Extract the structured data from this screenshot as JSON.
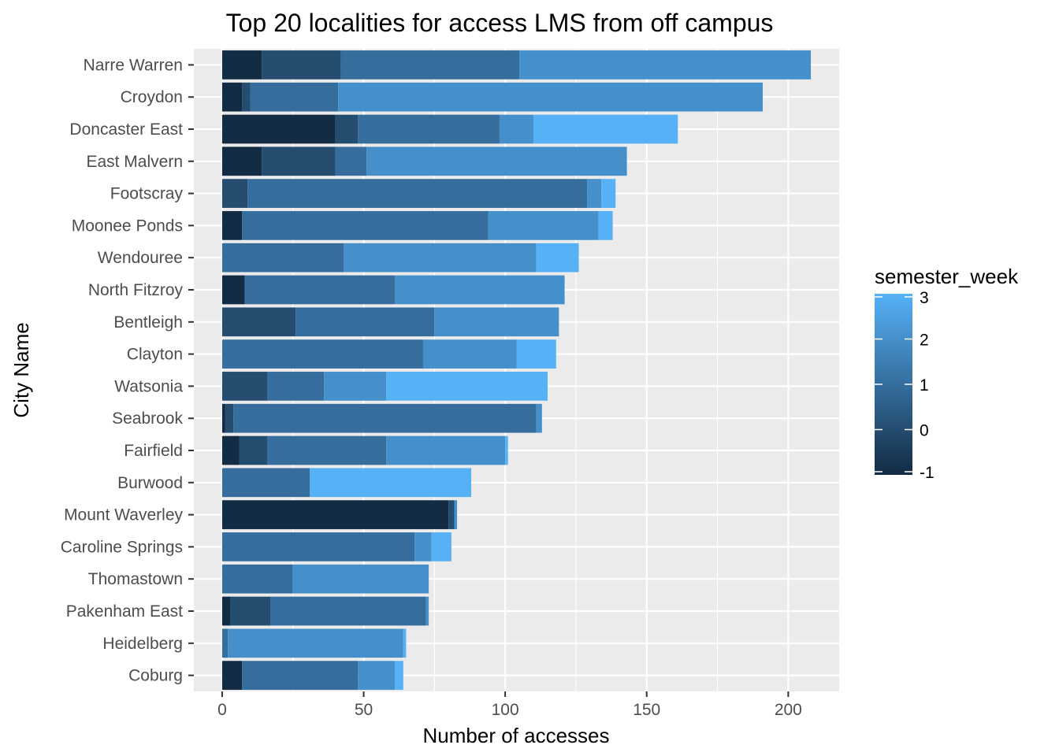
{
  "chart_data": {
    "type": "bar",
    "orientation": "horizontal",
    "stacked": true,
    "title": "Top 20 localities for access LMS from off campus",
    "xlabel": "Number of accesses",
    "ylabel": "City Name",
    "xlim": [
      -10,
      218
    ],
    "xticks": [
      0,
      50,
      100,
      150,
      200
    ],
    "grid": true,
    "legend": {
      "title": "semester_week",
      "position": "right",
      "min": -1,
      "max": 3,
      "ticks": [
        3,
        2,
        1,
        0,
        -1
      ],
      "color_low": "#132B43",
      "color_high": "#56B1F7"
    },
    "categories": [
      "Narre Warren",
      "Croydon",
      "Doncaster East",
      "East Malvern",
      "Footscray",
      "Moonee Ponds",
      "Wendouree",
      "North Fitzroy",
      "Bentleigh",
      "Clayton",
      "Watsonia",
      "Seabrook",
      "Fairfield",
      "Burwood",
      "Mount Waverley",
      "Caroline Springs",
      "Thomastown",
      "Pakenham East",
      "Heidelberg",
      "Coburg"
    ],
    "stacks": [
      [
        {
          "week": -1,
          "value": 14
        },
        {
          "week": 0,
          "value": 28
        },
        {
          "week": 1,
          "value": 63
        },
        {
          "week": 2,
          "value": 103
        }
      ],
      [
        {
          "week": -1,
          "value": 7
        },
        {
          "week": 0,
          "value": 3
        },
        {
          "week": 1,
          "value": 31
        },
        {
          "week": 2,
          "value": 150
        }
      ],
      [
        {
          "week": -1,
          "value": 40
        },
        {
          "week": 0,
          "value": 8
        },
        {
          "week": 1,
          "value": 50
        },
        {
          "week": 2,
          "value": 12
        },
        {
          "week": 3,
          "value": 51
        }
      ],
      [
        {
          "week": -1,
          "value": 14
        },
        {
          "week": 0,
          "value": 26
        },
        {
          "week": 1,
          "value": 11
        },
        {
          "week": 2,
          "value": 92
        }
      ],
      [
        {
          "week": 0,
          "value": 9
        },
        {
          "week": 1,
          "value": 120
        },
        {
          "week": 2,
          "value": 5
        },
        {
          "week": 3,
          "value": 5
        }
      ],
      [
        {
          "week": -1,
          "value": 7
        },
        {
          "week": 1,
          "value": 87
        },
        {
          "week": 2,
          "value": 39
        },
        {
          "week": 3,
          "value": 5
        }
      ],
      [
        {
          "week": 1,
          "value": 43
        },
        {
          "week": 2,
          "value": 68
        },
        {
          "week": 3,
          "value": 15
        }
      ],
      [
        {
          "week": -1,
          "value": 8
        },
        {
          "week": 1,
          "value": 53
        },
        {
          "week": 2,
          "value": 60
        }
      ],
      [
        {
          "week": 0,
          "value": 26
        },
        {
          "week": 1,
          "value": 49
        },
        {
          "week": 2,
          "value": 44
        }
      ],
      [
        {
          "week": 1,
          "value": 71
        },
        {
          "week": 2,
          "value": 33
        },
        {
          "week": 3,
          "value": 14
        }
      ],
      [
        {
          "week": 0,
          "value": 16
        },
        {
          "week": 1,
          "value": 20
        },
        {
          "week": 2,
          "value": 22
        },
        {
          "week": 3,
          "value": 57
        }
      ],
      [
        {
          "week": -1,
          "value": 1
        },
        {
          "week": 0,
          "value": 3
        },
        {
          "week": 1,
          "value": 107
        },
        {
          "week": 2,
          "value": 2
        }
      ],
      [
        {
          "week": -1,
          "value": 6
        },
        {
          "week": 0,
          "value": 10
        },
        {
          "week": 1,
          "value": 42
        },
        {
          "week": 2,
          "value": 42
        },
        {
          "week": 3,
          "value": 1
        }
      ],
      [
        {
          "week": 1,
          "value": 31
        },
        {
          "week": 3,
          "value": 57
        }
      ],
      [
        {
          "week": -1,
          "value": 80
        },
        {
          "week": 0,
          "value": 2
        },
        {
          "week": 2,
          "value": 1
        }
      ],
      [
        {
          "week": 1,
          "value": 68
        },
        {
          "week": 2,
          "value": 6
        },
        {
          "week": 3,
          "value": 7
        }
      ],
      [
        {
          "week": 1,
          "value": 25
        },
        {
          "week": 2,
          "value": 48
        }
      ],
      [
        {
          "week": -1,
          "value": 3
        },
        {
          "week": 0,
          "value": 14
        },
        {
          "week": 1,
          "value": 55
        },
        {
          "week": 2,
          "value": 1
        }
      ],
      [
        {
          "week": 1,
          "value": 2
        },
        {
          "week": 2,
          "value": 62
        },
        {
          "week": 3,
          "value": 1
        }
      ],
      [
        {
          "week": -1,
          "value": 7
        },
        {
          "week": 1,
          "value": 41
        },
        {
          "week": 2,
          "value": 13
        },
        {
          "week": 3,
          "value": 3
        }
      ]
    ]
  }
}
